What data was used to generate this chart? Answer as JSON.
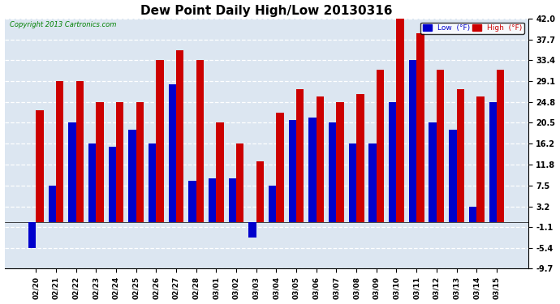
{
  "title": "Dew Point Daily High/Low 20130316",
  "copyright": "Copyright 2013 Cartronics.com",
  "ylabel_right_ticks": [
    -9.7,
    -5.4,
    -1.1,
    3.2,
    7.5,
    11.8,
    16.2,
    20.5,
    24.8,
    29.1,
    33.4,
    37.7,
    42.0
  ],
  "ylim": [
    -9.7,
    42.0
  ],
  "categories": [
    "02/20",
    "02/21",
    "02/22",
    "02/23",
    "02/24",
    "02/25",
    "02/26",
    "02/27",
    "02/28",
    "03/01",
    "03/02",
    "03/03",
    "03/04",
    "03/05",
    "03/06",
    "03/07",
    "03/08",
    "03/09",
    "03/10",
    "03/11",
    "03/12",
    "03/13",
    "03/14",
    "03/15"
  ],
  "low_values": [
    -5.4,
    7.5,
    20.5,
    16.2,
    15.5,
    19.0,
    16.2,
    28.5,
    8.5,
    9.0,
    9.0,
    -3.2,
    7.5,
    21.0,
    21.5,
    20.5,
    16.2,
    16.2,
    24.8,
    33.4,
    20.5,
    19.0,
    3.2,
    24.8
  ],
  "high_values": [
    23.0,
    29.1,
    29.1,
    24.8,
    24.8,
    24.8,
    33.4,
    35.5,
    33.4,
    20.5,
    16.2,
    12.5,
    22.5,
    27.5,
    26.0,
    24.8,
    26.5,
    31.5,
    43.0,
    39.0,
    31.5,
    27.5,
    26.0,
    31.5
  ],
  "low_color": "#0000cc",
  "high_color": "#cc0000",
  "bg_color": "#ffffff",
  "plot_bg_color": "#dce6f1",
  "grid_color": "#ffffff",
  "title_fontsize": 11,
  "bar_width": 0.38,
  "legend_low_label": "Low  (°F)",
  "legend_high_label": "High  (°F)"
}
